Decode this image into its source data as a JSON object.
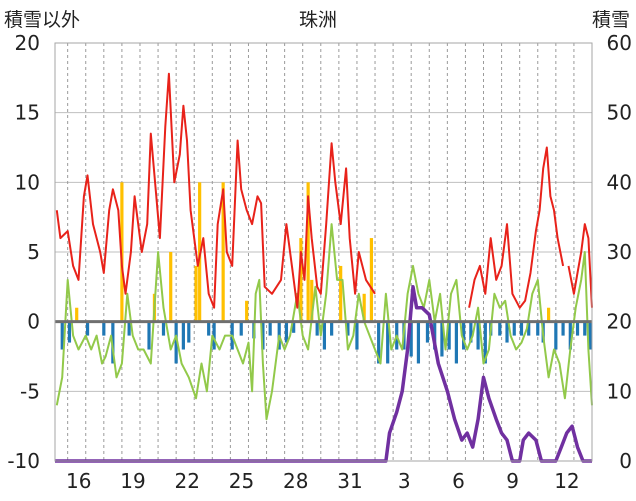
{
  "chart_data": {
    "type": "bar+line",
    "title": "珠洲",
    "ylabel_left": "積雪以外",
    "ylabel_right": "積雪",
    "y_left": {
      "min": -10,
      "max": 20,
      "ticks": [
        20,
        15,
        10,
        5,
        0,
        -5,
        -10
      ]
    },
    "y_right": {
      "min": 0,
      "max": 60,
      "ticks": [
        60,
        50,
        40,
        30,
        20,
        10,
        0
      ]
    },
    "x_ticks": [
      "16",
      "19",
      "22",
      "25",
      "28",
      "31",
      "3",
      "6",
      "9",
      "12"
    ],
    "x_range_days": [
      14.3,
      44.0
    ],
    "grid": true,
    "colors": {
      "temperature": "#e8221a",
      "temp_green": "#92c94a",
      "snow_depth": "#7030a0",
      "bar_pos": "#ffc000",
      "bar_neg": "#1f77b4"
    },
    "series": [
      {
        "type": "line",
        "axis": "left",
        "color": "#e8221a",
        "points": [
          [
            14.4,
            8
          ],
          [
            14.6,
            6
          ],
          [
            15,
            6.5
          ],
          [
            15.3,
            4
          ],
          [
            15.6,
            3
          ],
          [
            15.9,
            9
          ],
          [
            16.1,
            10.5
          ],
          [
            16.4,
            7
          ],
          [
            16.8,
            5
          ],
          [
            17,
            3.5
          ],
          [
            17.3,
            8
          ],
          [
            17.5,
            9.5
          ],
          [
            17.8,
            8
          ],
          [
            18,
            4
          ],
          [
            18.2,
            2
          ],
          [
            18.5,
            5
          ],
          [
            18.7,
            9
          ],
          [
            19.1,
            5
          ],
          [
            19.4,
            7
          ],
          [
            19.6,
            13.5
          ],
          [
            19.9,
            9
          ],
          [
            20.1,
            6
          ],
          [
            20.4,
            14
          ],
          [
            20.6,
            17.8
          ],
          [
            20.9,
            10
          ],
          [
            21.2,
            12
          ],
          [
            21.4,
            15.5
          ],
          [
            21.6,
            13
          ],
          [
            21.8,
            8
          ],
          [
            22,
            6
          ],
          [
            22.2,
            4
          ],
          [
            22.5,
            6
          ],
          [
            22.8,
            2
          ],
          [
            23.1,
            1
          ],
          [
            23.3,
            7
          ],
          [
            23.6,
            9.5
          ],
          [
            23.8,
            5
          ],
          [
            24.1,
            4
          ],
          [
            24.4,
            13
          ],
          [
            24.6,
            9.5
          ],
          [
            24.9,
            8
          ],
          [
            25.2,
            7
          ],
          [
            25.5,
            9
          ],
          [
            25.7,
            8.5
          ],
          [
            25.9,
            2.5
          ],
          [
            26.3,
            2
          ],
          [
            26.8,
            3
          ],
          [
            27.1,
            7
          ],
          [
            27.4,
            4
          ],
          [
            27.7,
            1
          ],
          [
            27.9,
            5
          ],
          [
            28.1,
            3
          ],
          [
            28.3,
            9
          ],
          [
            28.5,
            6
          ],
          [
            28.8,
            2.5
          ],
          [
            29,
            2
          ],
          [
            29.3,
            7
          ],
          [
            29.6,
            12.8
          ],
          [
            29.8,
            10
          ],
          [
            30.1,
            7
          ],
          [
            30.4,
            11
          ],
          [
            30.6,
            6
          ],
          [
            30.9,
            2
          ],
          [
            31.1,
            5
          ],
          [
            31.5,
            3
          ],
          [
            32,
            2
          ]
        ],
        "gap_after": true,
        "points2": [
          [
            37.2,
            1
          ],
          [
            37.5,
            3
          ],
          [
            37.8,
            4
          ],
          [
            38.1,
            2
          ],
          [
            38.4,
            6
          ],
          [
            38.7,
            3
          ],
          [
            39,
            4
          ],
          [
            39.3,
            7
          ],
          [
            39.6,
            2
          ],
          [
            40,
            1
          ],
          [
            40.3,
            1.5
          ],
          [
            40.6,
            3.5
          ],
          [
            40.9,
            6.5
          ],
          [
            41.1,
            8
          ],
          [
            41.3,
            11
          ],
          [
            41.5,
            12.5
          ],
          [
            41.7,
            9
          ],
          [
            41.9,
            8
          ],
          [
            42.1,
            6
          ],
          [
            42.4,
            4
          ]
        ],
        "points3": [
          [
            42.7,
            4
          ],
          [
            43,
            2
          ],
          [
            43.2,
            3.5
          ],
          [
            43.4,
            5
          ],
          [
            43.6,
            7
          ],
          [
            43.8,
            6
          ],
          [
            44,
            1
          ]
        ]
      },
      {
        "type": "line",
        "axis": "left",
        "color": "#92c94a",
        "points": [
          [
            14.4,
            -6
          ],
          [
            14.7,
            -4
          ],
          [
            15,
            3
          ],
          [
            15.3,
            -1
          ],
          [
            15.6,
            -2
          ],
          [
            16,
            -1
          ],
          [
            16.3,
            -2
          ],
          [
            16.6,
            -1
          ],
          [
            16.9,
            -3
          ],
          [
            17.1,
            -2.5
          ],
          [
            17.4,
            -1
          ],
          [
            17.7,
            -4
          ],
          [
            18,
            -3
          ],
          [
            18.3,
            2
          ],
          [
            18.6,
            -1
          ],
          [
            18.9,
            -2
          ],
          [
            19.2,
            -2
          ],
          [
            19.6,
            -3
          ],
          [
            20,
            5
          ],
          [
            20.3,
            1
          ],
          [
            20.7,
            -2
          ],
          [
            21,
            -1
          ],
          [
            21.3,
            -3
          ],
          [
            21.7,
            -4
          ],
          [
            22.1,
            -5.5
          ],
          [
            22.4,
            -3
          ],
          [
            22.7,
            -5
          ],
          [
            23,
            -1
          ],
          [
            23.4,
            -2
          ],
          [
            23.7,
            -1
          ],
          [
            24.1,
            -1
          ],
          [
            24.4,
            -2
          ],
          [
            24.7,
            -3
          ],
          [
            25,
            -1.5
          ],
          [
            25.2,
            -5
          ],
          [
            25.4,
            2
          ],
          [
            25.6,
            3
          ],
          [
            25.8,
            -3
          ],
          [
            26,
            -7
          ],
          [
            26.3,
            -5
          ],
          [
            26.7,
            -1
          ],
          [
            27,
            -2
          ],
          [
            27.3,
            -1
          ],
          [
            27.7,
            2
          ],
          [
            28,
            -1
          ],
          [
            28.3,
            -2
          ],
          [
            28.7,
            2.5
          ],
          [
            29,
            -1
          ],
          [
            29.3,
            2
          ],
          [
            29.6,
            7
          ],
          [
            29.9,
            3
          ],
          [
            30.2,
            3
          ],
          [
            30.5,
            -2
          ],
          [
            30.8,
            -1
          ],
          [
            31.1,
            2
          ],
          [
            31.4,
            0
          ],
          [
            31.7,
            -1
          ],
          [
            32,
            -2
          ],
          [
            32.3,
            -3
          ],
          [
            32.6,
            2
          ],
          [
            32.9,
            -2
          ],
          [
            33.2,
            -1
          ],
          [
            33.5,
            -2
          ],
          [
            33.8,
            2
          ],
          [
            34.1,
            4
          ],
          [
            34.4,
            2
          ],
          [
            34.7,
            1
          ],
          [
            35,
            3
          ],
          [
            35.3,
            0
          ],
          [
            35.6,
            2
          ],
          [
            35.9,
            -2
          ],
          [
            36.2,
            2
          ],
          [
            36.5,
            3
          ],
          [
            36.8,
            -1
          ],
          [
            37.1,
            -2
          ],
          [
            37.4,
            -1
          ],
          [
            37.7,
            1
          ],
          [
            38,
            -3
          ],
          [
            38.3,
            -2
          ],
          [
            38.6,
            2
          ],
          [
            38.9,
            1
          ],
          [
            39.2,
            1.5
          ],
          [
            39.5,
            -1
          ],
          [
            39.8,
            -2
          ],
          [
            40.1,
            -1.5
          ],
          [
            40.4,
            -0.5
          ],
          [
            40.7,
            2
          ],
          [
            41,
            3
          ],
          [
            41.3,
            -1
          ],
          [
            41.6,
            -4
          ],
          [
            41.9,
            -2
          ],
          [
            42.2,
            -3
          ],
          [
            42.5,
            -5.5
          ],
          [
            42.8,
            -2
          ],
          [
            43.1,
            1
          ],
          [
            43.4,
            3
          ],
          [
            43.6,
            5
          ],
          [
            43.8,
            -2
          ],
          [
            44,
            -6
          ]
        ]
      },
      {
        "type": "line",
        "axis": "right",
        "color": "#7030a0",
        "width": 3.5,
        "points": [
          [
            14.3,
            0
          ],
          [
            32.6,
            0
          ],
          [
            32.8,
            4
          ],
          [
            33.2,
            7
          ],
          [
            33.5,
            10
          ],
          [
            33.8,
            16
          ],
          [
            34.1,
            25
          ],
          [
            34.3,
            22
          ],
          [
            34.6,
            22
          ],
          [
            35,
            21
          ],
          [
            35.5,
            14
          ],
          [
            36,
            10
          ],
          [
            36.4,
            6
          ],
          [
            36.8,
            3
          ],
          [
            37.1,
            4
          ],
          [
            37.4,
            2
          ],
          [
            37.7,
            6
          ],
          [
            38,
            12
          ],
          [
            38.3,
            9
          ],
          [
            38.7,
            6
          ],
          [
            39,
            4
          ],
          [
            39.3,
            3
          ],
          [
            39.6,
            0
          ],
          [
            40,
            0
          ],
          [
            40.2,
            3
          ],
          [
            40.5,
            4
          ],
          [
            40.9,
            3
          ],
          [
            41.2,
            0
          ],
          [
            42,
            0
          ],
          [
            42.3,
            2
          ],
          [
            42.6,
            4
          ],
          [
            42.9,
            5
          ],
          [
            43.2,
            2
          ],
          [
            43.5,
            0
          ],
          [
            44,
            0
          ]
        ]
      },
      {
        "type": "bar",
        "axis": "left",
        "color_pos": "#ffc000",
        "color_neg": "#1f77b4",
        "bars": [
          [
            14.7,
            -2
          ],
          [
            15.1,
            -1.5
          ],
          [
            15.5,
            1
          ],
          [
            16.1,
            -1
          ],
          [
            17,
            -1
          ],
          [
            17.5,
            -3
          ],
          [
            18,
            10
          ],
          [
            18.4,
            -1
          ],
          [
            19.5,
            -2
          ],
          [
            19.8,
            2
          ],
          [
            20.3,
            -1
          ],
          [
            20.7,
            5
          ],
          [
            21,
            -3
          ],
          [
            21.4,
            -2
          ],
          [
            21.7,
            -1.5
          ],
          [
            22.1,
            4
          ],
          [
            22.3,
            10
          ],
          [
            22.8,
            -1
          ],
          [
            23.1,
            -2
          ],
          [
            23.6,
            10
          ],
          [
            24.1,
            -2
          ],
          [
            24.6,
            -1
          ],
          [
            24.9,
            1.5
          ],
          [
            25.3,
            -1.2
          ],
          [
            25.8,
            -2
          ],
          [
            26.2,
            -1
          ],
          [
            26.7,
            -2
          ],
          [
            27.1,
            -1.5
          ],
          [
            27.5,
            -0.8
          ],
          [
            27.9,
            6
          ],
          [
            28.3,
            10
          ],
          [
            28.5,
            3
          ],
          [
            28.8,
            -1
          ],
          [
            29.2,
            -2
          ],
          [
            29.6,
            -1
          ],
          [
            30.1,
            4
          ],
          [
            30.5,
            -1
          ],
          [
            31,
            -2
          ],
          [
            31.4,
            2
          ],
          [
            31.8,
            6
          ],
          [
            32.2,
            -3
          ],
          [
            32.7,
            -3
          ],
          [
            33.2,
            -2
          ],
          [
            33.6,
            -2
          ],
          [
            34,
            -2.5
          ],
          [
            34.4,
            -3
          ],
          [
            34.9,
            -1.5
          ],
          [
            35.3,
            -2
          ],
          [
            35.7,
            -2.5
          ],
          [
            36.1,
            -2
          ],
          [
            36.5,
            -3
          ],
          [
            36.9,
            -2
          ],
          [
            37.3,
            -1.5
          ],
          [
            37.7,
            -2
          ],
          [
            38.1,
            -3
          ],
          [
            38.4,
            -1
          ],
          [
            38.9,
            -1
          ],
          [
            39.3,
            -1.5
          ],
          [
            39.7,
            -1
          ],
          [
            40.1,
            -1
          ],
          [
            40.5,
            -1
          ],
          [
            41,
            -1
          ],
          [
            41.3,
            -1.5
          ],
          [
            41.6,
            1
          ],
          [
            42,
            -2
          ],
          [
            42.4,
            -1
          ],
          [
            42.8,
            -2
          ],
          [
            43.2,
            -1
          ],
          [
            43.6,
            -1
          ],
          [
            43.9,
            -2
          ]
        ]
      }
    ]
  }
}
